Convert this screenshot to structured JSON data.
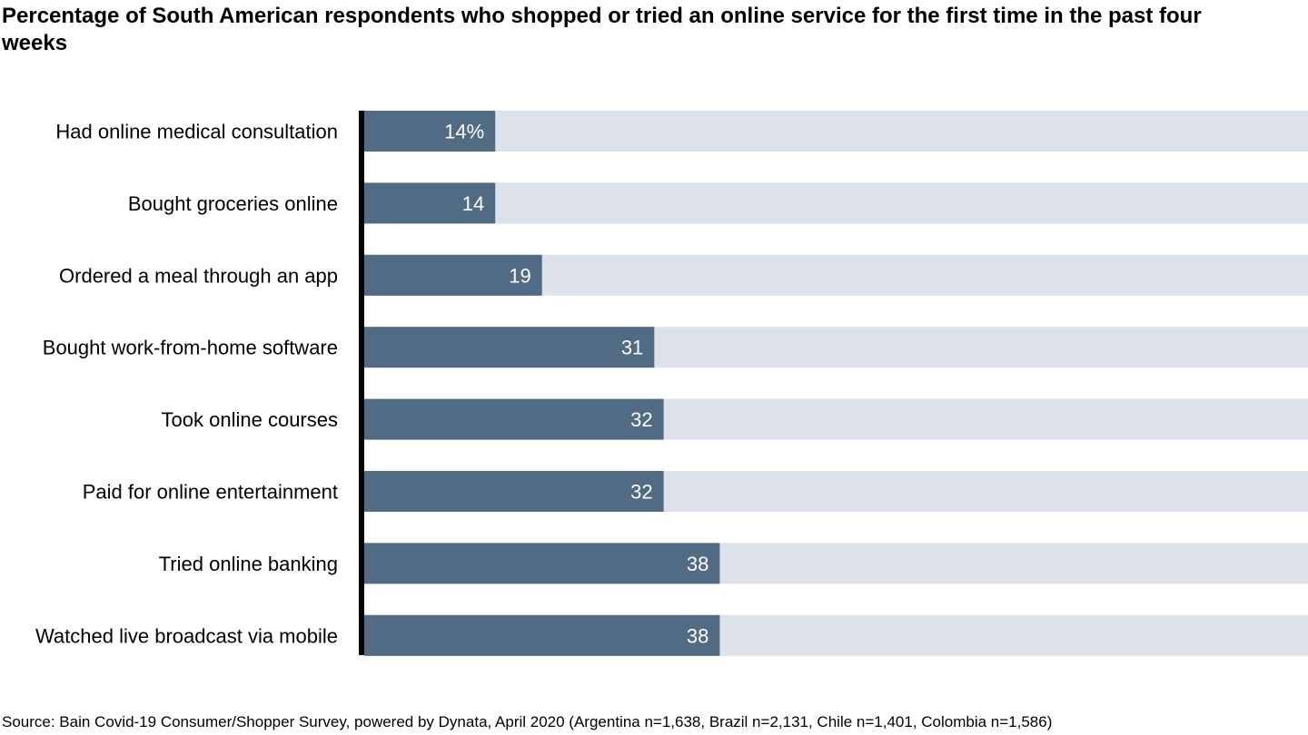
{
  "chart_data": {
    "type": "bar",
    "orientation": "horizontal",
    "title": "Percentage of South American respondents who shopped or tried an online service for the first time in the past four weeks",
    "categories": [
      "Had online medical consultation",
      "Bought groceries online",
      "Ordered a meal through an app",
      "Bought work-from-home software",
      "Took online courses",
      "Paid for online entertainment",
      "Tried online banking",
      "Watched live broadcast via mobile"
    ],
    "values": [
      14,
      14,
      19,
      31,
      32,
      32,
      38,
      38
    ],
    "data_labels": [
      "14%",
      "14",
      "19",
      "31",
      "32",
      "32",
      "38",
      "38"
    ],
    "xlim": [
      0,
      100
    ],
    "unit": "%",
    "grid": false,
    "colors": {
      "bar": "#516b84",
      "background_bar": "#dde2ea",
      "label": "#ffffff",
      "axis": "#000000"
    }
  },
  "source": "Source: Bain Covid-19 Consumer/Shopper Survey, powered by Dynata, April 2020 (Argentina n=1,638, Brazil n=2,131, Chile n=1,401, Colombia n=1,586)"
}
